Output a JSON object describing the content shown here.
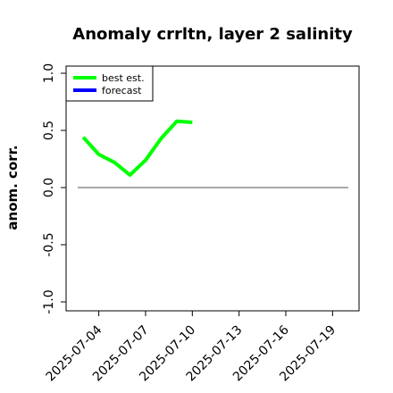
{
  "chart_data": {
    "type": "line",
    "title": "Anomaly crrltn, layer 2 salinity",
    "xlabel": "",
    "ylabel": "anom. corr.",
    "ylim": [
      -1.0,
      1.0
    ],
    "yticks": [
      "-1.0",
      "-0.5",
      "0.0",
      "0.5",
      "1.0"
    ],
    "yticks_values": [
      -1.0,
      -0.5,
      0.0,
      0.5,
      1.0
    ],
    "xticks": [
      "2025-07-04",
      "2025-07-07",
      "2025-07-10",
      "2025-07-13",
      "2025-07-16",
      "2025-07-19"
    ],
    "xticks_day": [
      4,
      7,
      10,
      13,
      16,
      19
    ],
    "highlighted_tick": "2025-07-10",
    "xlim_day": [
      1.9,
      20.7
    ],
    "reference_line": 0.0,
    "legend": {
      "position": "top-left",
      "entries": [
        "best est.",
        "forecast"
      ]
    },
    "series": [
      {
        "name": "best est.",
        "color": "#00ff00",
        "x": [
          "2025-07-03",
          "2025-07-04",
          "2025-07-05",
          "2025-07-06",
          "2025-07-07",
          "2025-07-08",
          "2025-07-09",
          "2025-07-10"
        ],
        "x_day": [
          3,
          4,
          5,
          6,
          7,
          8,
          9,
          10
        ],
        "y": [
          0.44,
          0.29,
          0.22,
          0.11,
          0.24,
          0.43,
          0.58,
          0.57
        ]
      },
      {
        "name": "forecast",
        "color": "#0000ff",
        "x": [],
        "x_day": [],
        "y": []
      }
    ],
    "colors": {
      "reference_line": "#777777",
      "highlighted_tick": "#228b22",
      "axes": "#000000"
    }
  }
}
